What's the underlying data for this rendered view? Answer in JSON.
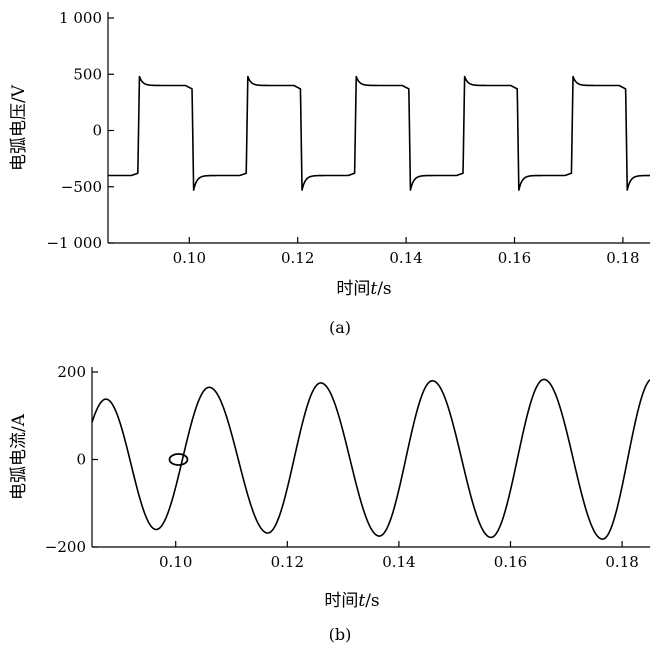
{
  "chart_data": [
    {
      "type": "line",
      "panel_label": "(a)",
      "xlabel_prefix": "时间",
      "xlabel_var": "t",
      "xlabel_suffix": "/s",
      "ylabel": "电弧电压/V",
      "xlim": [
        0.085,
        0.185
      ],
      "ylim": [
        -1000,
        1000
      ],
      "xticks": [
        0.1,
        0.12,
        0.14,
        0.16,
        0.18
      ],
      "xtick_labels": [
        "0.10",
        "0.12",
        "0.14",
        "0.16",
        "0.18"
      ],
      "yticks": [
        -1000,
        -500,
        0,
        500,
        1000
      ],
      "ytick_labels": [
        "−1 000",
        "−500",
        "0",
        "500",
        "1 000"
      ],
      "grid": false,
      "series": [
        {
          "waveform": "square",
          "period": 0.02,
          "first_rise": 0.0905,
          "first_fall": 0.1005,
          "plateau_high": 400,
          "plateau_low": -400,
          "spike_high": 480,
          "spike_low": -530,
          "color": "#000000"
        }
      ]
    },
    {
      "type": "line",
      "panel_label": "(b)",
      "xlabel_prefix": "时间",
      "xlabel_var": "t",
      "xlabel_suffix": "/s",
      "ylabel": "电弧电流/A",
      "xlim": [
        0.085,
        0.185
      ],
      "ylim": [
        -200,
        200
      ],
      "xticks": [
        0.1,
        0.12,
        0.14,
        0.16,
        0.18
      ],
      "xtick_labels": [
        "0.10",
        "0.12",
        "0.14",
        "0.16",
        "0.18"
      ],
      "yticks": [
        -200,
        0,
        200
      ],
      "ytick_labels": [
        "−200",
        "0",
        "200"
      ],
      "grid": false,
      "series": [
        {
          "waveform": "sine",
          "frequency_hz": 50,
          "peak_times": [
            0.0875,
            0.106,
            0.126,
            0.146,
            0.166,
            0.1855
          ],
          "peak_values": [
            138,
            165,
            175,
            180,
            183,
            185
          ],
          "trough_times": [
            0.0965,
            0.1165,
            0.1365,
            0.1565,
            0.1765
          ],
          "trough_values": [
            -160,
            -168,
            -175,
            -178,
            -182
          ],
          "color": "#000000"
        }
      ],
      "annotation": {
        "type": "ellipse-marker",
        "x": 0.1005,
        "y": 0
      }
    }
  ]
}
